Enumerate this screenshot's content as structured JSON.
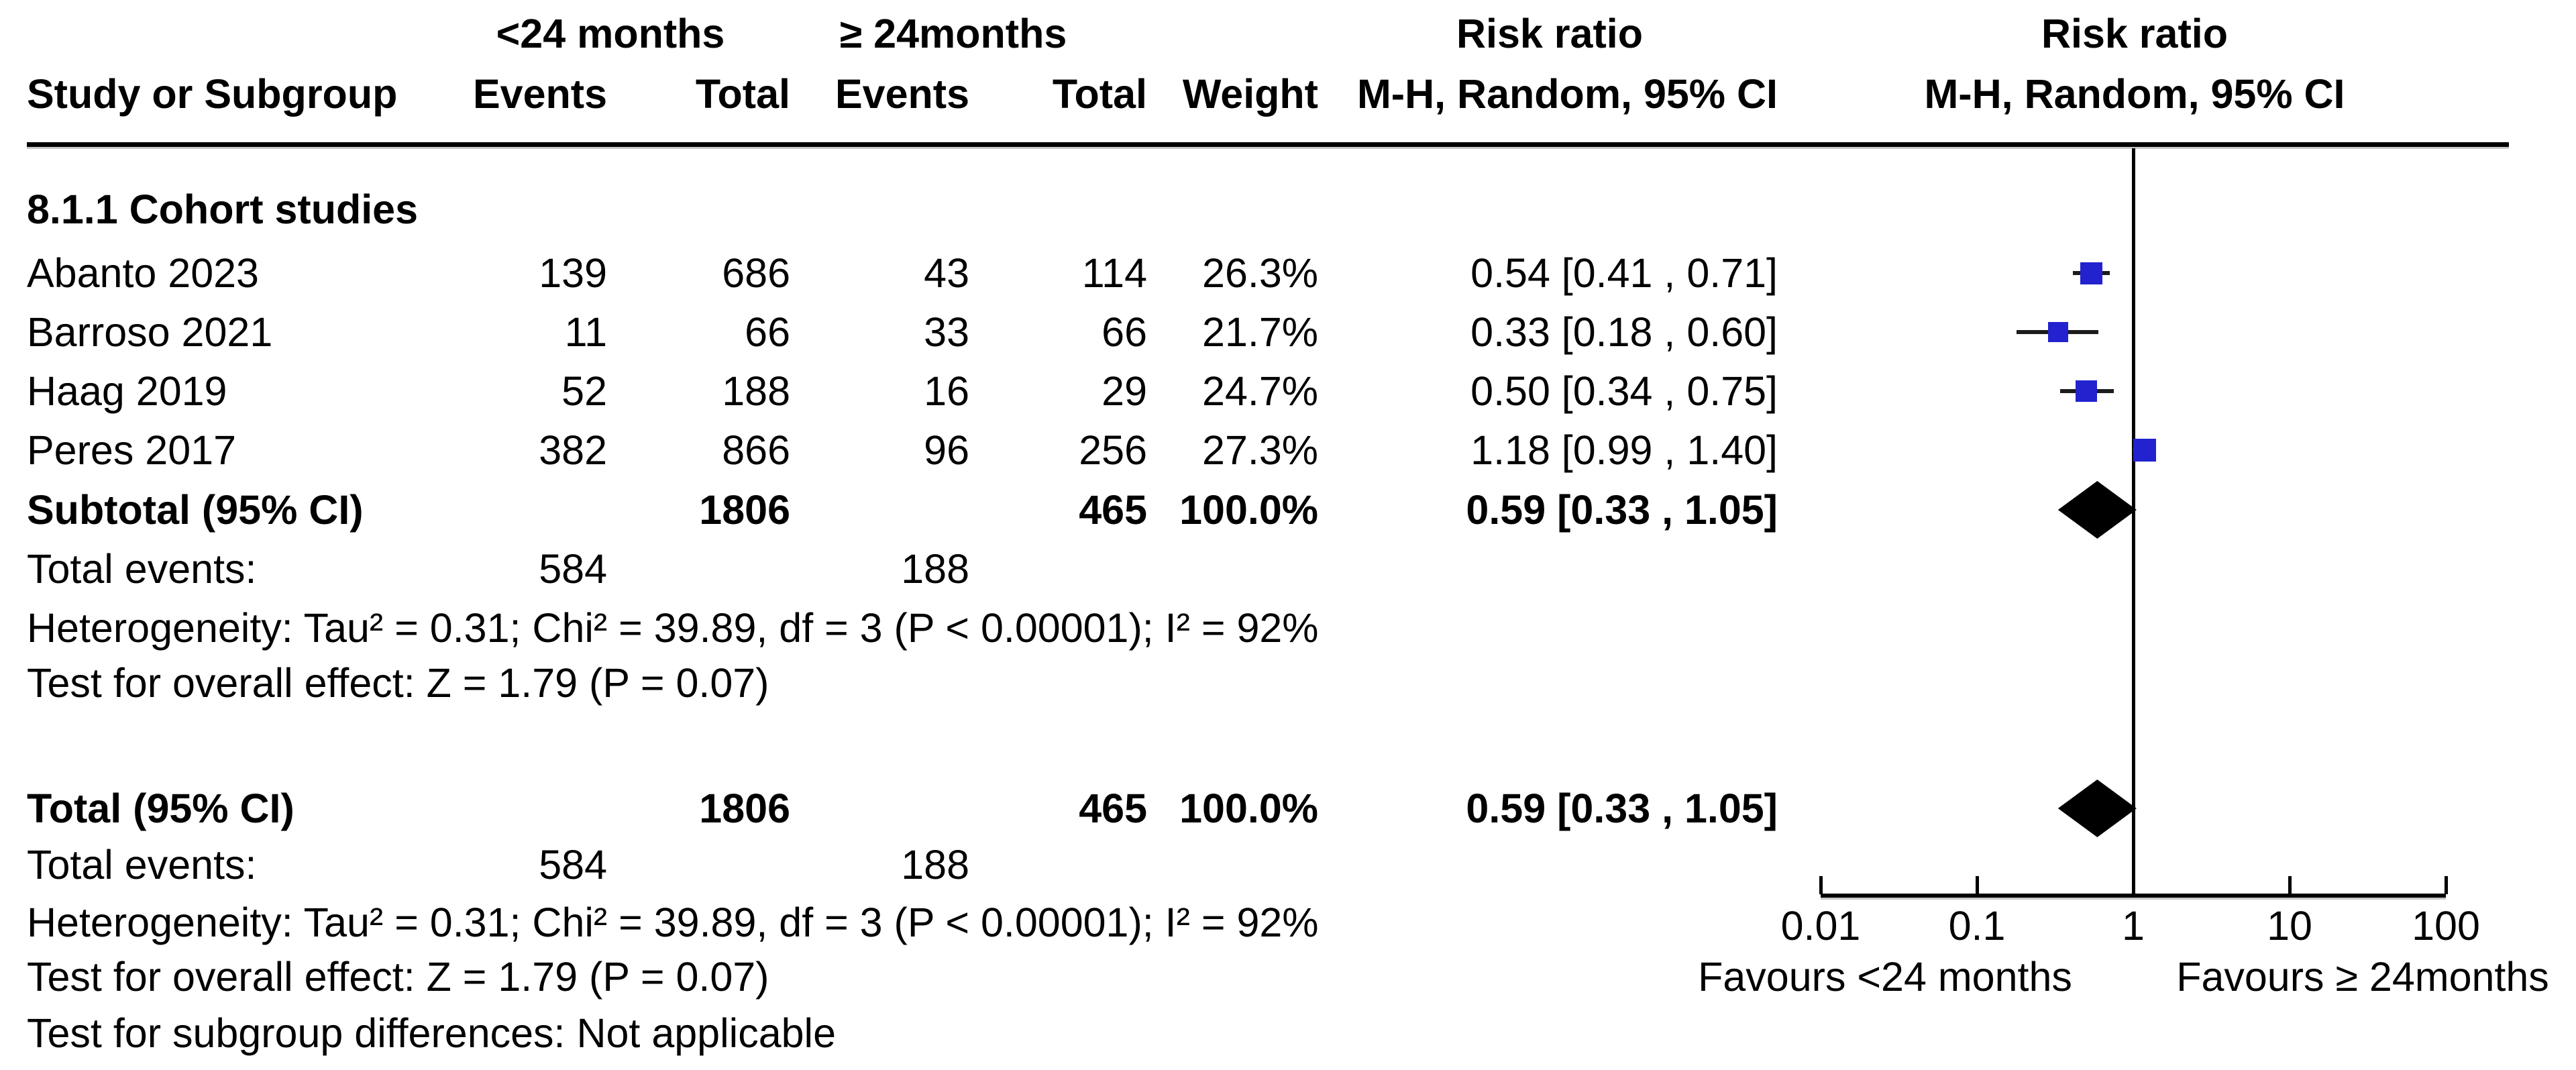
{
  "header": {
    "group1": "<24 months",
    "group2": "≥ 24months",
    "risk_ratio": "Risk ratio",
    "col_study": "Study or Subgroup",
    "col_events": "Events",
    "col_total": "Total",
    "col_weight": "Weight",
    "method_ci": "M-H, Random, 95% CI"
  },
  "table": {
    "subgroup_title": "8.1.1 Cohort studies",
    "rows": [
      {
        "study": "Abanto 2023",
        "events1": "139",
        "total1": "686",
        "events2": "43",
        "total2": "114",
        "weight": "26.3%",
        "ci": "0.54 [0.41 , 0.71]"
      },
      {
        "study": "Barroso 2021",
        "events1": "11",
        "total1": "66",
        "events2": "33",
        "total2": "66",
        "weight": "21.7%",
        "ci": "0.33 [0.18 , 0.60]"
      },
      {
        "study": "Haag 2019",
        "events1": "52",
        "total1": "188",
        "events2": "16",
        "total2": "29",
        "weight": "24.7%",
        "ci": "0.50 [0.34 , 0.75]"
      },
      {
        "study": "Peres 2017",
        "events1": "382",
        "total1": "866",
        "events2": "96",
        "total2": "256",
        "weight": "27.3%",
        "ci": "1.18 [0.99 , 1.40]"
      }
    ],
    "subtotal": {
      "label": "Subtotal (95% CI)",
      "total1": "1806",
      "total2": "465",
      "weight": "100.0%",
      "ci": "0.59 [0.33 , 1.05]"
    },
    "subtotal_events": {
      "label": "Total events:",
      "events1": "584",
      "events2": "188"
    },
    "subtotal_heterogeneity": "Heterogeneity: Tau² = 0.31; Chi² = 39.89, df = 3 (P < 0.00001); I² = 92%",
    "subtotal_test": "Test for overall effect: Z = 1.79 (P = 0.07)",
    "total": {
      "label": "Total (95% CI)",
      "total1": "1806",
      "total2": "465",
      "weight": "100.0%",
      "ci": "0.59 [0.33 , 1.05]"
    },
    "total_events": {
      "label": "Total events:",
      "events1": "584",
      "events2": "188"
    },
    "total_heterogeneity": "Heterogeneity: Tau² = 0.31; Chi² = 39.89, df = 3 (P < 0.00001); I² = 92%",
    "total_test": "Test for overall effect: Z = 1.79 (P = 0.07)",
    "subgroup_diff": "Test for subgroup differences: Not applicable"
  },
  "axis": {
    "ticks": [
      "0.01",
      "0.1",
      "1",
      "10",
      "100"
    ],
    "favours_left": "Favours <24 months",
    "favours_right": "Favours ≥ 24months"
  },
  "colors": {
    "marker_blue": "#2222CE",
    "diamond_black": "#000000"
  },
  "chart_data": {
    "type": "forest",
    "effect_measure": "Risk ratio",
    "model": "M-H, Random, 95% CI",
    "x_scale": "log10",
    "x_ticks": [
      0.01,
      0.1,
      1,
      10,
      100
    ],
    "null_line": 1,
    "studies": [
      {
        "name": "Abanto 2023",
        "rr": 0.54,
        "lo": 0.41,
        "hi": 0.71,
        "weight_pct": 26.3
      },
      {
        "name": "Barroso 2021",
        "rr": 0.33,
        "lo": 0.18,
        "hi": 0.6,
        "weight_pct": 21.7
      },
      {
        "name": "Haag 2019",
        "rr": 0.5,
        "lo": 0.34,
        "hi": 0.75,
        "weight_pct": 24.7
      },
      {
        "name": "Peres 2017",
        "rr": 1.18,
        "lo": 0.99,
        "hi": 1.4,
        "weight_pct": 27.3
      }
    ],
    "diamonds": [
      {
        "name": "Subtotal (95% CI)",
        "rr": 0.59,
        "lo": 0.33,
        "hi": 1.05
      },
      {
        "name": "Total (95% CI)",
        "rr": 0.59,
        "lo": 0.33,
        "hi": 1.05
      }
    ]
  }
}
